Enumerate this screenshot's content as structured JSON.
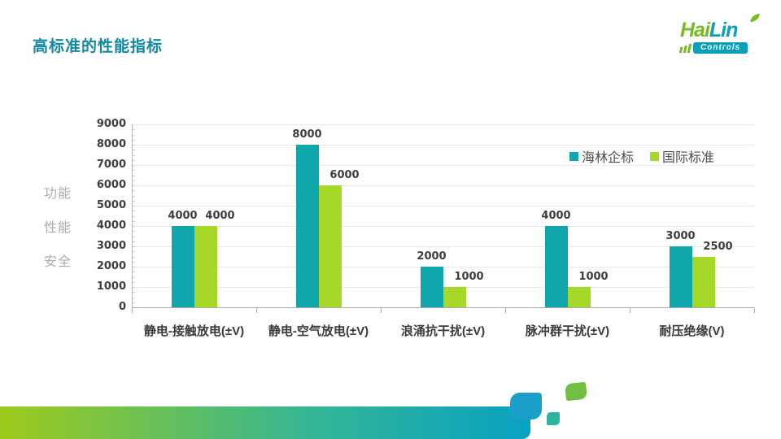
{
  "title": "高标准的性能指标",
  "logo": {
    "word_part1": "Hai",
    "word_part2": "Lin",
    "subtitle": "Controls",
    "green": "#76bc21",
    "teal": "#0b9fba"
  },
  "side_labels": [
    "功能",
    "性能",
    "安全"
  ],
  "chart_data": {
    "type": "bar",
    "categories": [
      "静电-接触放电(±V)",
      "静电-空气放电(±V)",
      "浪涌抗干扰(±V)",
      "脉冲群干扰(±V)",
      "耐压绝缘(V)"
    ],
    "series": [
      {
        "name": "海林企标",
        "color": "#0fa6ac",
        "values": [
          4000,
          8000,
          2000,
          4000,
          3000
        ]
      },
      {
        "name": "国际标准",
        "color": "#a6d829",
        "values": [
          4000,
          6000,
          1000,
          1000,
          2500
        ]
      }
    ],
    "title": "",
    "xlabel": "",
    "ylabel": "",
    "ylim": [
      0,
      9000
    ],
    "ytick_step": 1000,
    "ytick_minor_step": 250,
    "grid": true,
    "legend_position": "top-right",
    "value_labels": true
  },
  "colors": {
    "title": "#0f89a1",
    "axis": "#a9a9a9",
    "gridline": "#e9e9e9",
    "label_text": "#3d3d3d",
    "side_label": "#ababab",
    "footer_gradient_left": "#9ecb1b",
    "footer_gradient_right": "#07a2c2",
    "deco_blue": "#1aa0c8",
    "deco_seagreen": "#2eb49e",
    "deco_green": "#6fbf43"
  }
}
